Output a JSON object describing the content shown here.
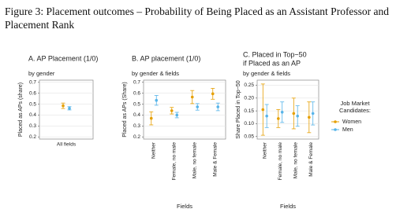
{
  "caption": "Figure 3: Placement outcomes – Probability of Being Placed as an Assistant Professor and Placement Rank",
  "chart_data": [
    {
      "type": "errorpoint",
      "title": [
        "A. AP Placement (1/0)"
      ],
      "subtitle": "by gender",
      "y_label": "Placed as APs (share)",
      "categories": [
        "All fields"
      ],
      "ylim": [
        0.18,
        0.72
      ],
      "yticks": [
        0.2,
        0.3,
        0.4,
        0.5,
        0.6,
        0.7
      ],
      "grid": true,
      "series": [
        {
          "name": "Women",
          "color": "#E69F00",
          "values": [
            0.485
          ],
          "errors": [
            0.025
          ]
        },
        {
          "name": "Men",
          "color": "#56B4E9",
          "values": [
            0.462
          ],
          "errors": [
            0.015
          ]
        }
      ]
    },
    {
      "type": "errorpoint",
      "title": [
        "B. AP placement (1/0)"
      ],
      "subtitle": "by gender & fields",
      "y_label": "Placed as APs (Share)",
      "x_label": "Fields",
      "categories": [
        "Neither",
        "Female, no male",
        "Male, no female",
        "Male & Female"
      ],
      "ylim": [
        0.18,
        0.72
      ],
      "yticks": [
        0.2,
        0.3,
        0.4,
        0.5,
        0.6,
        0.7
      ],
      "grid": true,
      "series": [
        {
          "name": "Women",
          "color": "#E69F00",
          "values": [
            0.37,
            0.44,
            0.565,
            0.595
          ],
          "errors": [
            0.06,
            0.03,
            0.06,
            0.05
          ]
        },
        {
          "name": "Men",
          "color": "#56B4E9",
          "values": [
            0.535,
            0.4,
            0.475,
            0.475
          ],
          "errors": [
            0.045,
            0.025,
            0.03,
            0.035
          ]
        }
      ]
    },
    {
      "type": "errorpoint",
      "title": [
        "C. Placed in Top−50",
        "if Placed as an AP"
      ],
      "subtitle": "by gender & fields",
      "y_label": "Share Placed in Top−50",
      "x_label": "Fields",
      "categories": [
        "Neither",
        "Female, no male",
        "Male, no female",
        "Male & Female"
      ],
      "ylim": [
        0.04,
        0.27
      ],
      "yticks": [
        {
          "value": 0.05,
          "label": "0.05"
        },
        {
          "value": 0.1,
          "label": "0.10"
        },
        {
          "value": 0.15,
          "label": "0.15"
        },
        {
          "value": 0.2,
          "label": "0.20"
        },
        {
          "value": 0.25,
          "label": "0.25"
        }
      ],
      "grid": true,
      "legend_title": [
        "Job Market",
        "Candidates:"
      ],
      "legend": "right",
      "series": [
        {
          "name": "Women",
          "color": "#E69F00",
          "values": [
            0.155,
            0.12,
            0.14,
            0.125
          ],
          "errors": [
            0.1,
            0.035,
            0.06,
            0.06
          ]
        },
        {
          "name": "Men",
          "color": "#56B4E9",
          "values": [
            0.13,
            0.145,
            0.13,
            0.14
          ],
          "errors": [
            0.045,
            0.04,
            0.04,
            0.045
          ]
        }
      ]
    }
  ]
}
